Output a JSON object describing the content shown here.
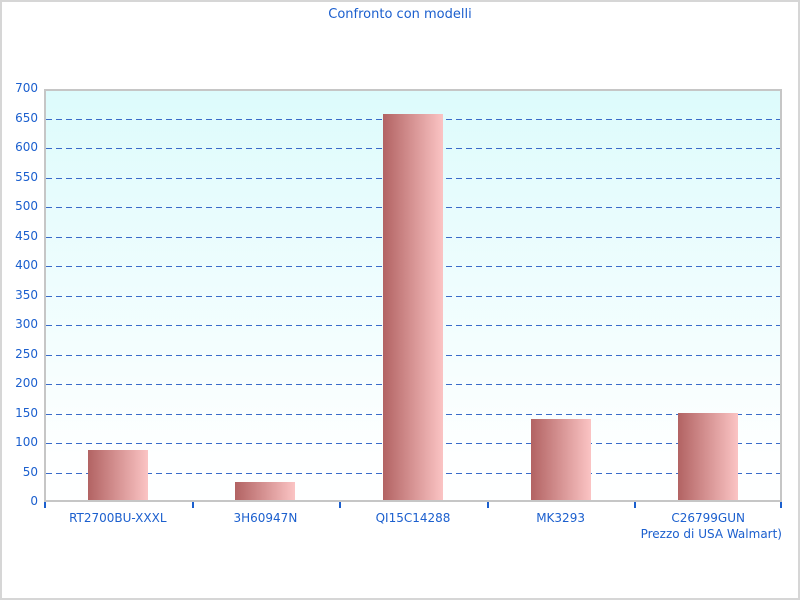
{
  "window": {
    "title": "Confronto con modelli"
  },
  "chart_data": {
    "type": "bar",
    "title": "Confronto con modelli",
    "categories": [
      "RT2700BU-XXXL",
      "3H60947N",
      "QI15C14288",
      "MK3293",
      "C26799GUN"
    ],
    "values": [
      85,
      30,
      655,
      137,
      148
    ],
    "xlabel": "Prezzo di USA Walmart)",
    "ylabel": "",
    "ylim": [
      0,
      700
    ],
    "ytick_step": 50,
    "grid": "horizontal-dashed",
    "legend": "none",
    "colors": {
      "text": "#1b5fce",
      "gridline": "#3a6bc9",
      "bar_gradient_start": "#b26363",
      "bar_gradient_end": "#fbc4c4",
      "plot_bg_top": "#ddfbfc",
      "plot_bg_bottom": "#feffff",
      "plot_border": "#c6c6c6"
    }
  }
}
